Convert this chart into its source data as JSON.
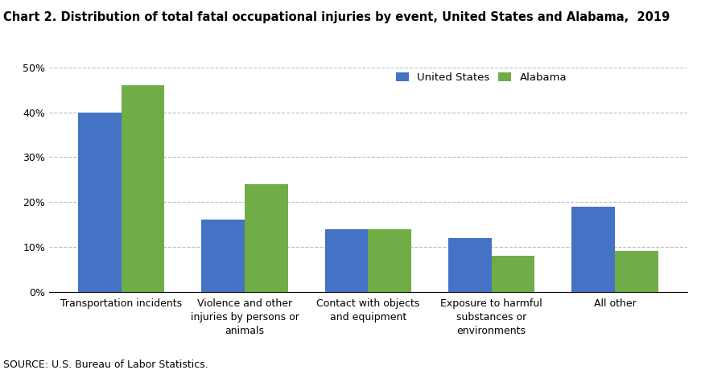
{
  "title": "Chart 2. Distribution of total fatal occupational injuries by event, United States and Alabama,  2019",
  "categories": [
    "Transportation incidents",
    "Violence and other\ninjuries by persons or\nanimals",
    "Contact with objects\nand equipment",
    "Exposure to harmful\nsubstances or\nenvironments",
    "All other"
  ],
  "us_values": [
    40,
    16,
    14,
    12,
    19
  ],
  "al_values": [
    46,
    24,
    14,
    8,
    9
  ],
  "us_color": "#4472C4",
  "al_color": "#70AD47",
  "us_label": "United States",
  "al_label": "Alabama",
  "ylim": [
    0,
    50
  ],
  "yticks": [
    0,
    10,
    20,
    30,
    40,
    50
  ],
  "source": "SOURCE: U.S. Bureau of Labor Statistics.",
  "background_color": "#ffffff",
  "title_fontsize": 10.5,
  "legend_fontsize": 9.5,
  "tick_fontsize": 9,
  "source_fontsize": 9
}
